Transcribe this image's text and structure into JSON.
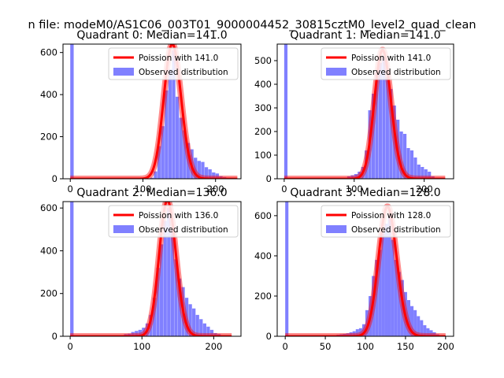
{
  "figure": {
    "suptitle": "n file: modeM0/AS1C06_003T01_9000004452_30815cztM0_level2_quad_clean"
  },
  "colors": {
    "observed": "#8080ff",
    "poisson": "#ff0000",
    "frame": "#000000",
    "background": "#ffffff"
  },
  "chart_data": [
    {
      "type": "bar",
      "title": "Quadrant 0: Median=141.0",
      "median": 141.0,
      "xlim": [
        -10,
        235
      ],
      "ylim": [
        0,
        640
      ],
      "xticks": [
        0,
        100,
        200
      ],
      "yticks": [
        0,
        200,
        400,
        600
      ],
      "xlabel": "",
      "ylabel": "",
      "legend": {
        "placement": "top-right",
        "entries": [
          "Poission with 141.0",
          "Observed distribution"
        ]
      },
      "series": [
        {
          "name": "Observed distribution",
          "kind": "histogram",
          "bin_width": 4.7,
          "bin_starts": [
            0,
            105,
            110,
            115,
            120,
            125,
            130,
            135,
            140,
            145,
            150,
            155,
            160,
            165,
            170,
            175,
            180,
            185,
            190,
            195,
            200,
            205,
            210,
            215,
            220
          ],
          "counts": [
            640,
            2,
            5,
            35,
            155,
            250,
            420,
            520,
            610,
            390,
            290,
            230,
            170,
            140,
            100,
            85,
            80,
            55,
            45,
            30,
            25,
            12,
            8,
            4,
            2
          ]
        },
        {
          "name": "Poission with 141.0",
          "kind": "poisson",
          "lambda": 141.0,
          "scale": 640,
          "x_range": [
            0,
            230
          ]
        }
      ]
    },
    {
      "type": "bar",
      "title": "Quadrant 1: Median=141.0",
      "median": 141.0,
      "xlim": [
        -10,
        242
      ],
      "ylim": [
        0,
        570
      ],
      "xticks": [
        0,
        100,
        200
      ],
      "yticks": [
        0,
        100,
        200,
        300,
        400,
        500
      ],
      "xlabel": "",
      "ylabel": "",
      "legend": {
        "placement": "top-right",
        "entries": [
          "Poission with 141.0",
          "Observed distribution"
        ]
      },
      "series": [
        {
          "name": "Observed distribution",
          "kind": "histogram",
          "bin_width": 4.7,
          "bin_starts": [
            0,
            80,
            85,
            90,
            95,
            100,
            105,
            110,
            115,
            120,
            125,
            130,
            135,
            140,
            145,
            150,
            155,
            160,
            165,
            170,
            175,
            180,
            185,
            190,
            195,
            200,
            205,
            210,
            215,
            220
          ],
          "counts": [
            570,
            3,
            5,
            10,
            15,
            20,
            30,
            50,
            120,
            290,
            360,
            450,
            490,
            520,
            430,
            380,
            310,
            250,
            200,
            190,
            130,
            120,
            90,
            60,
            50,
            40,
            30,
            10,
            5,
            3
          ]
        },
        {
          "name": "Poission with 141.0",
          "kind": "poisson",
          "lambda": 141.0,
          "scale": 545,
          "x_range": [
            0,
            230
          ]
        }
      ]
    },
    {
      "type": "bar",
      "title": "Quadrant 2: Median=136.0",
      "median": 136.0,
      "xlim": [
        -10,
        238
      ],
      "ylim": [
        0,
        630
      ],
      "xticks": [
        0,
        100,
        200
      ],
      "yticks": [
        0,
        200,
        400,
        600
      ],
      "xlabel": "",
      "ylabel": "",
      "legend": {
        "placement": "top-right",
        "entries": [
          "Poission with 136.0",
          "Observed distribution"
        ]
      },
      "series": [
        {
          "name": "Observed distribution",
          "kind": "histogram",
          "bin_width": 4.7,
          "bin_starts": [
            0,
            70,
            75,
            80,
            85,
            90,
            95,
            100,
            105,
            110,
            115,
            120,
            125,
            130,
            135,
            140,
            145,
            150,
            155,
            160,
            165,
            170,
            175,
            180,
            185,
            190,
            195,
            200,
            205,
            210,
            215
          ],
          "counts": [
            630,
            5,
            10,
            12,
            20,
            25,
            30,
            40,
            60,
            100,
            180,
            320,
            430,
            540,
            600,
            500,
            360,
            270,
            230,
            180,
            150,
            130,
            100,
            80,
            60,
            45,
            30,
            15,
            10,
            5,
            3
          ]
        },
        {
          "name": "Poission with 136.0",
          "kind": "poisson",
          "lambda": 136.0,
          "scale": 635,
          "x_range": [
            0,
            225
          ]
        }
      ]
    },
    {
      "type": "bar",
      "title": "Quadrant 3: Median=128.0",
      "median": 128.0,
      "xlim": [
        -10,
        210
      ],
      "ylim": [
        0,
        670
      ],
      "xticks": [
        0,
        50,
        100,
        150,
        200
      ],
      "yticks": [
        0,
        200,
        400,
        600
      ],
      "xlabel": "",
      "ylabel": "",
      "legend": {
        "placement": "top-right",
        "entries": [
          "Poission with 128.0",
          "Observed distribution"
        ]
      },
      "series": [
        {
          "name": "Observed distribution",
          "kind": "histogram",
          "bin_width": 4.0,
          "bin_starts": [
            0,
            60,
            64,
            68,
            72,
            76,
            80,
            84,
            88,
            92,
            96,
            100,
            104,
            108,
            112,
            116,
            120,
            124,
            128,
            132,
            136,
            140,
            144,
            148,
            152,
            156,
            160,
            164,
            168,
            172,
            176,
            180,
            184,
            188,
            192
          ],
          "counts": [
            670,
            5,
            8,
            10,
            12,
            15,
            20,
            25,
            35,
            40,
            60,
            130,
            200,
            300,
            380,
            430,
            520,
            560,
            600,
            480,
            380,
            320,
            280,
            220,
            180,
            150,
            130,
            100,
            80,
            55,
            40,
            30,
            20,
            10,
            5
          ]
        },
        {
          "name": "Poission with 128.0",
          "kind": "poisson",
          "lambda": 128.0,
          "scale": 645,
          "x_range": [
            0,
            200
          ]
        }
      ]
    }
  ]
}
